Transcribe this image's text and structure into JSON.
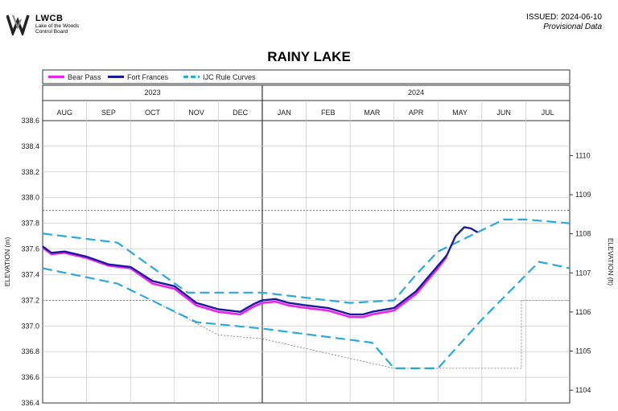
{
  "header": {
    "logo_acronym": "LWCB",
    "logo_subtitle_line1": "Lake of the Woods",
    "logo_subtitle_line2": "Control Board",
    "issued": "ISSUED: 2024-06-10",
    "provisional": "Provisional Data"
  },
  "colors": {
    "bear_pass": "#ee22ee",
    "fort_frances": "#1a1aa0",
    "rule_curves": "#2aa8e0",
    "grid": "#c8c8c8"
  },
  "chart_data": {
    "type": "line",
    "title": "RAINY LAKE",
    "ylabel_left": "ELEVATION (m)",
    "ylabel_right": "ELEVATION (ft)",
    "ylim": [
      336.4,
      338.6
    ],
    "yticks_left": [
      336.4,
      336.6,
      336.8,
      337.0,
      337.2,
      337.4,
      337.6,
      337.8,
      338.0,
      338.2,
      338.4,
      338.6
    ],
    "yticks_left_labels": [
      "336.4",
      "336.6",
      "336.8",
      "337.0",
      "337.2",
      "337.4",
      "337.6",
      "337.8",
      "338.0",
      "338.2",
      "338.4",
      "338.6"
    ],
    "yticks_right_ft": [
      1104,
      1105,
      1106,
      1107,
      1108,
      1109,
      1110
    ],
    "yticks_right_labels": [
      "1104",
      "1105",
      "1106",
      "1107",
      "1108",
      "1109",
      "1110"
    ],
    "x_unit": "months since 2023-08-01",
    "xlim": [
      0,
      12
    ],
    "year_labels": [
      "2023",
      "2024"
    ],
    "year_boundary": 5,
    "months": [
      "AUG",
      "SEP",
      "OCT",
      "NOV",
      "DEC",
      "JAN",
      "FEB",
      "MAR",
      "APR",
      "MAY",
      "JUN",
      "JUL"
    ],
    "grid": true,
    "legend": [
      "Bear Pass",
      "Fort Frances",
      "IJC Rule Curves"
    ],
    "legend_position": "top",
    "series": [
      {
        "name": "Bear Pass",
        "x": [
          0,
          0.2,
          0.5,
          1.0,
          1.5,
          2.0,
          2.5,
          3.0,
          3.5,
          4.0,
          4.5,
          4.8,
          5.0,
          5.3,
          5.6,
          6.0,
          6.5,
          7.0,
          7.3,
          7.5,
          8.0,
          8.5,
          9.0,
          9.2
        ],
        "y": [
          337.61,
          337.56,
          337.57,
          337.53,
          337.47,
          337.45,
          337.33,
          337.29,
          337.16,
          337.11,
          337.09,
          337.15,
          337.18,
          337.19,
          337.16,
          337.14,
          337.12,
          337.07,
          337.07,
          337.09,
          337.12,
          337.25,
          337.45,
          337.54
        ]
      },
      {
        "name": "Fort Frances",
        "x": [
          0,
          0.2,
          0.5,
          1.0,
          1.5,
          2.0,
          2.5,
          3.0,
          3.5,
          4.0,
          4.5,
          4.8,
          5.0,
          5.3,
          5.6,
          6.0,
          6.5,
          7.0,
          7.3,
          7.5,
          8.0,
          8.5,
          9.0,
          9.2,
          9.4,
          9.6,
          9.75,
          9.9
        ],
        "y": [
          337.62,
          337.57,
          337.58,
          337.54,
          337.48,
          337.46,
          337.35,
          337.31,
          337.18,
          337.13,
          337.11,
          337.17,
          337.2,
          337.21,
          337.18,
          337.16,
          337.14,
          337.09,
          337.09,
          337.11,
          337.14,
          337.27,
          337.47,
          337.55,
          337.7,
          337.77,
          337.76,
          337.73
        ]
      },
      {
        "name": "IJC Rule Curves",
        "upper": {
          "x": [
            0,
            1.7,
            3.3,
            5.0,
            7.0,
            8.0,
            8.5,
            9.0,
            10.5,
            11.0,
            12.0
          ],
          "y": [
            337.72,
            337.65,
            337.26,
            337.26,
            337.18,
            337.2,
            337.4,
            337.58,
            337.83,
            337.83,
            337.8
          ]
        },
        "lower": {
          "x": [
            0,
            1.7,
            3.5,
            5.0,
            7.5,
            8.0,
            9.0,
            10.0,
            11.3,
            12.0
          ],
          "y": [
            337.45,
            337.33,
            337.03,
            336.98,
            336.87,
            336.67,
            336.67,
            337.05,
            337.5,
            337.45
          ]
        }
      }
    ],
    "reference_lines": {
      "dotted_upper_y": 337.9,
      "gray_dashed": {
        "x": [
          0,
          2.5,
          4.0,
          5.0,
          8.0,
          9.0,
          10.9,
          10.9,
          12.0
        ],
        "y": [
          337.2,
          337.2,
          336.93,
          336.9,
          336.67,
          336.67,
          336.67,
          337.2,
          337.2
        ]
      }
    }
  }
}
